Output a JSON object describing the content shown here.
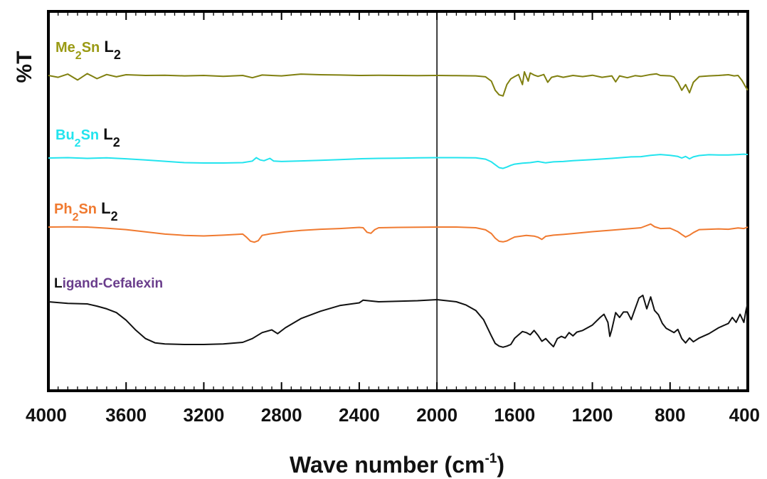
{
  "chart_data": {
    "type": "line",
    "title": "",
    "xlabel": "Wave number (cm",
    "xlabel_sup": "-1",
    "xlabel_close": ")",
    "ylabel": "%T",
    "xlim": [
      4000,
      400
    ],
    "x_reversed": true,
    "y_scale": "arbitrary offset transmittance",
    "y_ticks_shown": false,
    "grid": false,
    "legend": "inline labels above each trace",
    "x_ticks": [
      4000,
      3600,
      3200,
      2800,
      2400,
      2000,
      1600,
      1200,
      800,
      400
    ],
    "x_tick_labels": [
      "4000",
      "3600",
      "3200",
      "2800",
      "2400",
      "2000",
      "1600",
      "1200",
      "800",
      "400"
    ],
    "divider_line_x": 2000,
    "series": [
      {
        "name": "Me2Sn L2",
        "label_parts": [
          "Me",
          "2",
          "Sn",
          " L",
          "2"
        ],
        "color": "#808010",
        "label_color": "#9a9a14",
        "points": [
          [
            4000,
            100
          ],
          [
            3950,
            99.2
          ],
          [
            3900,
            100.6
          ],
          [
            3850,
            98
          ],
          [
            3800,
            100.8
          ],
          [
            3750,
            98.6
          ],
          [
            3700,
            100.4
          ],
          [
            3650,
            99.4
          ],
          [
            3600,
            100.3
          ],
          [
            3500,
            100
          ],
          [
            3400,
            100.1
          ],
          [
            3300,
            99.8
          ],
          [
            3200,
            100
          ],
          [
            3100,
            99.6
          ],
          [
            3000,
            100
          ],
          [
            2950,
            99
          ],
          [
            2900,
            100.2
          ],
          [
            2800,
            99.8
          ],
          [
            2700,
            100.6
          ],
          [
            2600,
            100.3
          ],
          [
            2500,
            100.2
          ],
          [
            2400,
            100
          ],
          [
            2300,
            100.1
          ],
          [
            2200,
            100
          ],
          [
            2100,
            99.9
          ],
          [
            2000,
            100
          ],
          [
            1900,
            99.9
          ],
          [
            1800,
            99.8
          ],
          [
            1750,
            99.4
          ],
          [
            1720,
            97.5
          ],
          [
            1700,
            93.5
          ],
          [
            1680,
            91.5
          ],
          [
            1660,
            91
          ],
          [
            1640,
            96
          ],
          [
            1620,
            98.5
          ],
          [
            1600,
            99.5
          ],
          [
            1580,
            100.4
          ],
          [
            1560,
            96
          ],
          [
            1550,
            101.6
          ],
          [
            1530,
            97.5
          ],
          [
            1520,
            101.1
          ],
          [
            1500,
            100.2
          ],
          [
            1480,
            99.6
          ],
          [
            1450,
            100.4
          ],
          [
            1430,
            97
          ],
          [
            1410,
            99.2
          ],
          [
            1380,
            99.8
          ],
          [
            1350,
            99.2
          ],
          [
            1300,
            100
          ],
          [
            1250,
            99.5
          ],
          [
            1200,
            100.1
          ],
          [
            1150,
            99.2
          ],
          [
            1100,
            99.8
          ],
          [
            1080,
            97.2
          ],
          [
            1060,
            99.8
          ],
          [
            1020,
            99
          ],
          [
            980,
            99.9
          ],
          [
            950,
            99.6
          ],
          [
            900,
            100.4
          ],
          [
            870,
            100.7
          ],
          [
            850,
            100
          ],
          [
            800,
            99.8
          ],
          [
            780,
            99.3
          ],
          [
            760,
            97
          ],
          [
            740,
            93.5
          ],
          [
            720,
            96
          ],
          [
            700,
            92.4
          ],
          [
            680,
            97
          ],
          [
            650,
            99.5
          ],
          [
            600,
            99.8
          ],
          [
            550,
            100
          ],
          [
            500,
            100.3
          ],
          [
            470,
            99.8
          ],
          [
            450,
            100
          ],
          [
            430,
            97.8
          ],
          [
            410,
            94.8
          ],
          [
            400,
            93.5
          ]
        ]
      },
      {
        "name": "Bu2Sn L2",
        "label_parts": [
          "Bu",
          "2",
          "Sn",
          " L",
          "2"
        ],
        "color": "#22e4ee",
        "label_color": "#22e4ee",
        "points": [
          [
            4000,
            100
          ],
          [
            3900,
            100.2
          ],
          [
            3800,
            99.8
          ],
          [
            3700,
            100.1
          ],
          [
            3600,
            99.6
          ],
          [
            3500,
            99
          ],
          [
            3400,
            98.3
          ],
          [
            3300,
            97.6
          ],
          [
            3200,
            97.4
          ],
          [
            3100,
            97.4
          ],
          [
            3000,
            97.6
          ],
          [
            2950,
            98.4
          ],
          [
            2930,
            100.2
          ],
          [
            2910,
            99
          ],
          [
            2890,
            98.6
          ],
          [
            2860,
            99.8
          ],
          [
            2840,
            98.4
          ],
          [
            2800,
            98.2
          ],
          [
            2700,
            98.5
          ],
          [
            2600,
            98.8
          ],
          [
            2500,
            99.2
          ],
          [
            2400,
            99.6
          ],
          [
            2300,
            99.8
          ],
          [
            2200,
            99.9
          ],
          [
            2100,
            100.1
          ],
          [
            2000,
            100.2
          ],
          [
            1900,
            100.2
          ],
          [
            1800,
            100.1
          ],
          [
            1750,
            99.4
          ],
          [
            1720,
            98
          ],
          [
            1700,
            96.5
          ],
          [
            1680,
            95
          ],
          [
            1660,
            94.6
          ],
          [
            1640,
            95.3
          ],
          [
            1620,
            96.2
          ],
          [
            1600,
            96.8
          ],
          [
            1560,
            97.3
          ],
          [
            1520,
            97.6
          ],
          [
            1480,
            98.2
          ],
          [
            1440,
            97.5
          ],
          [
            1400,
            98
          ],
          [
            1350,
            98.2
          ],
          [
            1300,
            98.6
          ],
          [
            1200,
            99.2
          ],
          [
            1100,
            99.8
          ],
          [
            1000,
            100.6
          ],
          [
            950,
            100.7
          ],
          [
            900,
            101.4
          ],
          [
            850,
            101.8
          ],
          [
            800,
            101.4
          ],
          [
            760,
            100.8
          ],
          [
            740,
            100
          ],
          [
            720,
            100.8
          ],
          [
            700,
            99.6
          ],
          [
            680,
            100.6
          ],
          [
            650,
            101.3
          ],
          [
            600,
            101.7
          ],
          [
            550,
            101.6
          ],
          [
            500,
            101.6
          ],
          [
            450,
            101.8
          ],
          [
            420,
            102
          ],
          [
            400,
            101.8
          ]
        ]
      },
      {
        "name": "Ph2Sn L2",
        "label_parts": [
          "Ph",
          "2",
          "Sn",
          " L",
          "2"
        ],
        "color": "#f07a30",
        "label_color": "#f07a30",
        "points": [
          [
            4000,
            100
          ],
          [
            3900,
            100.1
          ],
          [
            3800,
            100
          ],
          [
            3700,
            99.4
          ],
          [
            3600,
            98.6
          ],
          [
            3500,
            97.4
          ],
          [
            3400,
            96.2
          ],
          [
            3300,
            95.5
          ],
          [
            3200,
            95.2
          ],
          [
            3100,
            95.6
          ],
          [
            3000,
            96.2
          ],
          [
            2980,
            94.5
          ],
          [
            2960,
            92.4
          ],
          [
            2940,
            91.8
          ],
          [
            2920,
            92.6
          ],
          [
            2900,
            95.5
          ],
          [
            2860,
            96.3
          ],
          [
            2820,
            96.8
          ],
          [
            2780,
            97.4
          ],
          [
            2700,
            98.2
          ],
          [
            2600,
            98.8
          ],
          [
            2500,
            99.2
          ],
          [
            2400,
            99.8
          ],
          [
            2380,
            99.6
          ],
          [
            2360,
            97.2
          ],
          [
            2340,
            96.6
          ],
          [
            2320,
            98.6
          ],
          [
            2300,
            99.6
          ],
          [
            2200,
            99.8
          ],
          [
            2100,
            99.9
          ],
          [
            2000,
            100
          ],
          [
            1900,
            100
          ],
          [
            1800,
            99.6
          ],
          [
            1750,
            98.5
          ],
          [
            1720,
            96.5
          ],
          [
            1700,
            94
          ],
          [
            1680,
            92.3
          ],
          [
            1660,
            92
          ],
          [
            1640,
            92.5
          ],
          [
            1620,
            93.6
          ],
          [
            1600,
            94.6
          ],
          [
            1560,
            95.2
          ],
          [
            1540,
            95.5
          ],
          [
            1500,
            95.1
          ],
          [
            1480,
            94.5
          ],
          [
            1460,
            93.3
          ],
          [
            1440,
            95
          ],
          [
            1400,
            95.6
          ],
          [
            1350,
            96
          ],
          [
            1300,
            96.5
          ],
          [
            1200,
            97.5
          ],
          [
            1100,
            98.3
          ],
          [
            1000,
            99.2
          ],
          [
            950,
            99.6
          ],
          [
            900,
            101.6
          ],
          [
            880,
            100.2
          ],
          [
            850,
            99.2
          ],
          [
            800,
            99.4
          ],
          [
            760,
            97.5
          ],
          [
            740,
            96
          ],
          [
            720,
            94.6
          ],
          [
            700,
            95.6
          ],
          [
            680,
            97
          ],
          [
            650,
            98.6
          ],
          [
            600,
            98.8
          ],
          [
            550,
            99
          ],
          [
            500,
            98.8
          ],
          [
            450,
            99.5
          ],
          [
            420,
            99.2
          ],
          [
            400,
            100
          ]
        ]
      },
      {
        "name": "Ligand-Cefalexin",
        "label_parts": [
          "L",
          "igand-Cefalexin"
        ],
        "color": "#111111",
        "label_color": "#6a3d8c",
        "points": [
          [
            4000,
            100
          ],
          [
            3900,
            99.4
          ],
          [
            3800,
            99.2
          ],
          [
            3750,
            98.4
          ],
          [
            3700,
            97.4
          ],
          [
            3650,
            96
          ],
          [
            3600,
            93.2
          ],
          [
            3550,
            89.5
          ],
          [
            3500,
            86.4
          ],
          [
            3450,
            84.8
          ],
          [
            3400,
            84.4
          ],
          [
            3300,
            84.2
          ],
          [
            3200,
            84.2
          ],
          [
            3100,
            84.4
          ],
          [
            3000,
            85
          ],
          [
            2950,
            86.4
          ],
          [
            2900,
            88.6
          ],
          [
            2850,
            89.6
          ],
          [
            2820,
            88.2
          ],
          [
            2780,
            90.4
          ],
          [
            2700,
            93.8
          ],
          [
            2600,
            96.5
          ],
          [
            2500,
            98.6
          ],
          [
            2400,
            99.6
          ],
          [
            2380,
            100.6
          ],
          [
            2300,
            100
          ],
          [
            2200,
            100.2
          ],
          [
            2100,
            100.4
          ],
          [
            2000,
            100.8
          ],
          [
            1900,
            100
          ],
          [
            1850,
            98.8
          ],
          [
            1800,
            96.8
          ],
          [
            1760,
            93.4
          ],
          [
            1720,
            87.4
          ],
          [
            1700,
            84.6
          ],
          [
            1680,
            83.6
          ],
          [
            1660,
            83.2
          ],
          [
            1640,
            83.6
          ],
          [
            1620,
            84.2
          ],
          [
            1600,
            86.5
          ],
          [
            1560,
            89
          ],
          [
            1540,
            88.6
          ],
          [
            1520,
            87.8
          ],
          [
            1500,
            89.4
          ],
          [
            1480,
            87.6
          ],
          [
            1460,
            85.4
          ],
          [
            1440,
            86.4
          ],
          [
            1420,
            84.8
          ],
          [
            1400,
            83.4
          ],
          [
            1380,
            86.4
          ],
          [
            1360,
            87.2
          ],
          [
            1340,
            86.6
          ],
          [
            1320,
            88.6
          ],
          [
            1300,
            87.4
          ],
          [
            1280,
            88.8
          ],
          [
            1250,
            89.4
          ],
          [
            1200,
            91.4
          ],
          [
            1160,
            94.2
          ],
          [
            1140,
            95.4
          ],
          [
            1120,
            92.4
          ],
          [
            1110,
            87.2
          ],
          [
            1100,
            89.8
          ],
          [
            1080,
            96
          ],
          [
            1060,
            94.2
          ],
          [
            1040,
            96.2
          ],
          [
            1020,
            96.2
          ],
          [
            1000,
            93.4
          ],
          [
            980,
            97.4
          ],
          [
            960,
            101.4
          ],
          [
            940,
            102.4
          ],
          [
            920,
            97.4
          ],
          [
            900,
            101.8
          ],
          [
            880,
            96.8
          ],
          [
            860,
            95.2
          ],
          [
            840,
            92
          ],
          [
            820,
            90.2
          ],
          [
            800,
            89.4
          ],
          [
            780,
            88.6
          ],
          [
            760,
            89.8
          ],
          [
            740,
            86.4
          ],
          [
            720,
            84.8
          ],
          [
            700,
            86.6
          ],
          [
            680,
            85.2
          ],
          [
            650,
            86.6
          ],
          [
            600,
            88.2
          ],
          [
            550,
            90.4
          ],
          [
            500,
            92
          ],
          [
            480,
            94.2
          ],
          [
            460,
            92.4
          ],
          [
            440,
            95.4
          ],
          [
            420,
            92.4
          ],
          [
            410,
            96.6
          ],
          [
            400,
            99.6
          ]
        ]
      }
    ]
  }
}
